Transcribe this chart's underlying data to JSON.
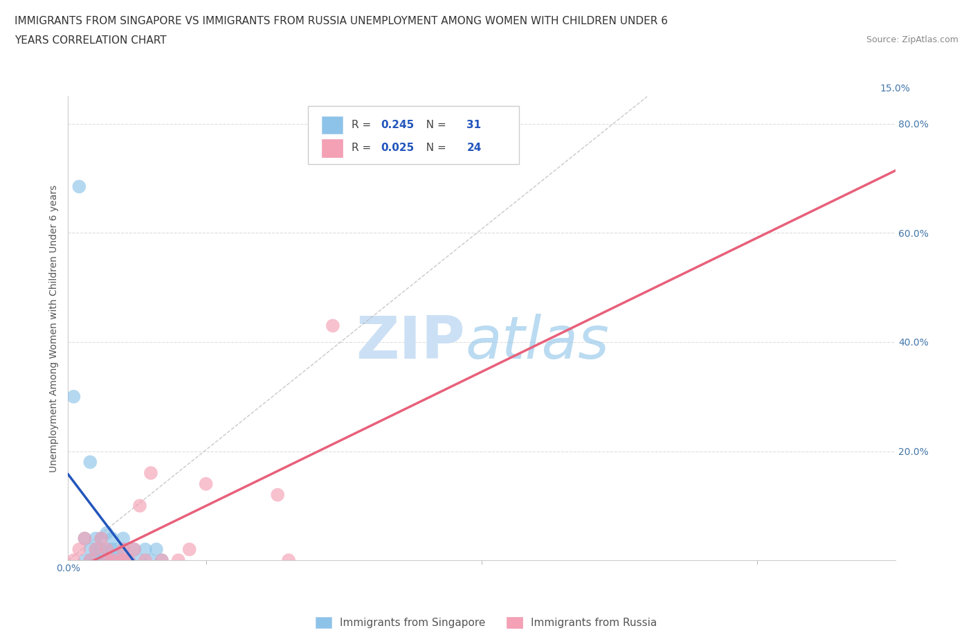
{
  "title_line1": "IMMIGRANTS FROM SINGAPORE VS IMMIGRANTS FROM RUSSIA UNEMPLOYMENT AMONG WOMEN WITH CHILDREN UNDER 6",
  "title_line2": "YEARS CORRELATION CHART",
  "source": "Source: ZipAtlas.com",
  "ylabel": "Unemployment Among Women with Children Under 6 years",
  "xlim": [
    0.0,
    0.15
  ],
  "ylim": [
    0.0,
    0.85
  ],
  "xticks": [
    0.0,
    0.05,
    0.1,
    0.15
  ],
  "xticklabels": [
    "0.0%",
    "",
    "",
    ""
  ],
  "bottom_xticklabels": [
    "0.0%",
    "",
    "",
    "15.0%"
  ],
  "ytick_vals": [
    0.2,
    0.4,
    0.6,
    0.8
  ],
  "ytick_labels_right": [
    "20.0%",
    "40.0%",
    "60.0%",
    "80.0%"
  ],
  "singapore_R": 0.245,
  "singapore_N": 31,
  "russia_R": 0.025,
  "russia_N": 24,
  "singapore_color": "#8dc3e8",
  "russia_color": "#f4a0b5",
  "singapore_line_color": "#2255bb",
  "russia_line_color": "#e8607a",
  "watermark_zip_color": "#cce0f5",
  "watermark_atlas_color": "#8dc3e8",
  "grid_color": "#dddddd",
  "bg_color": "#ffffff",
  "title_fontsize": 11,
  "tick_fontsize": 10,
  "legend_fontsize": 12,
  "singapore_x": [
    0.002,
    0.003,
    0.003,
    0.004,
    0.004,
    0.005,
    0.005,
    0.005,
    0.006,
    0.006,
    0.006,
    0.007,
    0.007,
    0.007,
    0.008,
    0.008,
    0.008,
    0.009,
    0.009,
    0.01,
    0.01,
    0.01,
    0.011,
    0.012,
    0.013,
    0.014,
    0.015,
    0.016,
    0.017,
    0.001,
    0.004
  ],
  "singapore_y": [
    0.685,
    0.0,
    0.04,
    0.0,
    0.02,
    0.0,
    0.02,
    0.04,
    0.0,
    0.02,
    0.04,
    0.0,
    0.02,
    0.05,
    0.0,
    0.02,
    0.04,
    0.0,
    0.02,
    0.0,
    0.02,
    0.04,
    0.0,
    0.02,
    0.0,
    0.02,
    0.0,
    0.02,
    0.0,
    0.3,
    0.18
  ],
  "russia_x": [
    0.001,
    0.002,
    0.003,
    0.004,
    0.005,
    0.006,
    0.007,
    0.007,
    0.008,
    0.009,
    0.01,
    0.01,
    0.011,
    0.012,
    0.013,
    0.014,
    0.015,
    0.017,
    0.02,
    0.022,
    0.025,
    0.038,
    0.04,
    0.048
  ],
  "russia_y": [
    0.0,
    0.02,
    0.04,
    0.0,
    0.02,
    0.04,
    0.0,
    0.02,
    0.0,
    0.0,
    0.0,
    0.02,
    0.0,
    0.02,
    0.1,
    0.0,
    0.16,
    0.0,
    0.0,
    0.02,
    0.14,
    0.12,
    0.0,
    0.43
  ]
}
